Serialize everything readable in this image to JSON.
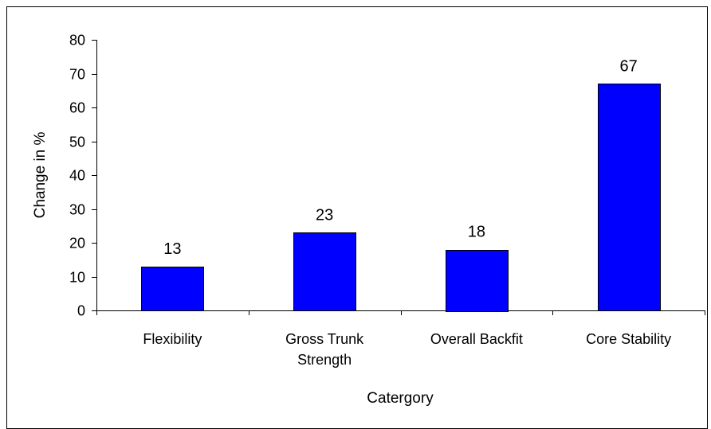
{
  "chart_data": {
    "type": "bar",
    "title": "",
    "xlabel": "Catergory",
    "ylabel": "Change in %",
    "categories": [
      "Flexibility",
      "Gross Trunk Strength",
      "Overall Backfit",
      "Core Stability"
    ],
    "category_lines": [
      [
        "Flexibility"
      ],
      [
        "Gross Trunk",
        "Strength"
      ],
      [
        "Overall Backfit"
      ],
      [
        "Core Stability"
      ]
    ],
    "values": [
      13,
      23,
      18,
      67
    ],
    "data_labels": [
      "13",
      "23",
      "18",
      "67"
    ],
    "ylim": [
      0,
      80
    ],
    "yticks": [
      0,
      10,
      20,
      30,
      40,
      50,
      60,
      70,
      80
    ],
    "grid": false,
    "legend": "none",
    "bar_color": "#0000FF",
    "axis_color": "#000000"
  }
}
